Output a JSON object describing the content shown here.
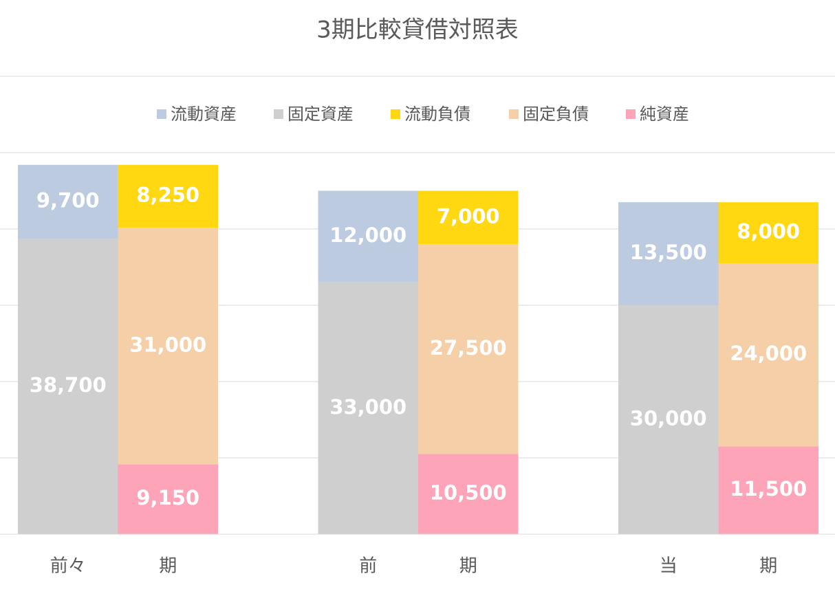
{
  "chart_data": {
    "type": "stacked_bar",
    "title": "3期比較貸借対照表",
    "categories": [
      "前々",
      "期",
      "前",
      "期",
      "当",
      "期"
    ],
    "series": [
      {
        "name": "流動資産",
        "color": "#bccbe0",
        "values": [
          9700,
          null,
          12000,
          null,
          13500,
          null
        ],
        "value_labels": [
          "9,700",
          null,
          "12,000",
          null,
          "13,500",
          null
        ]
      },
      {
        "name": "固定資産",
        "color": "#cfcfcf",
        "values": [
          38700,
          null,
          33000,
          null,
          30000,
          null
        ],
        "value_labels": [
          "38,700",
          null,
          "33,000",
          null,
          "30,000",
          null
        ]
      },
      {
        "name": "流動負債",
        "color": "#ffd812",
        "values": [
          null,
          8250,
          null,
          7000,
          null,
          8000
        ],
        "value_labels": [
          null,
          "8,250",
          null,
          "7,000",
          null,
          "8,000"
        ]
      },
      {
        "name": "固定負債",
        "color": "#f5cfa8",
        "values": [
          null,
          31000,
          null,
          27500,
          null,
          24000
        ],
        "value_labels": [
          null,
          "31,000",
          null,
          "27,500",
          null,
          "24,000"
        ]
      },
      {
        "name": "純資産",
        "color": "#fda4b8",
        "values": [
          null,
          9150,
          null,
          10500,
          null,
          11500
        ],
        "value_labels": [
          null,
          "9,150",
          null,
          "10,500",
          null,
          "11,500"
        ]
      }
    ],
    "ylim": [
      0,
      60000
    ],
    "yticks": [
      0,
      10000,
      20000,
      30000,
      40000,
      50000,
      60000
    ],
    "grid": true,
    "legend": "top"
  }
}
